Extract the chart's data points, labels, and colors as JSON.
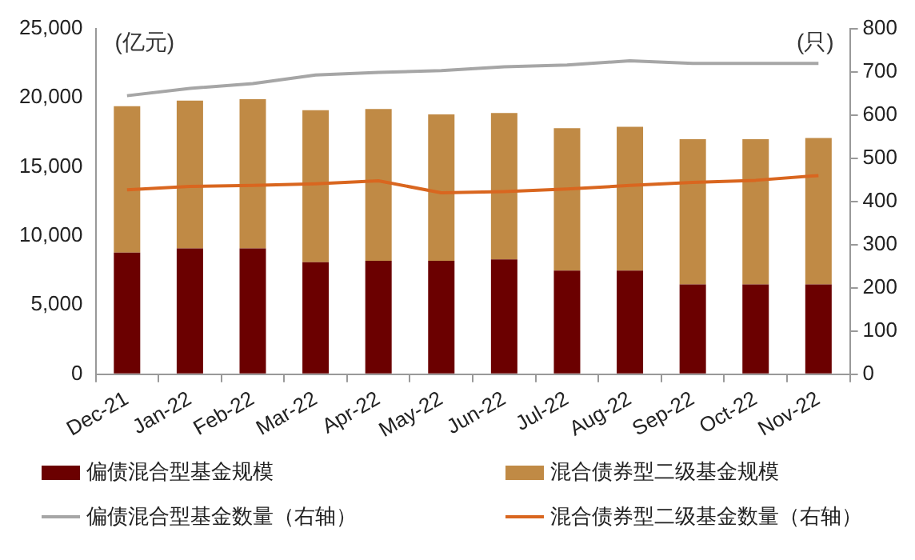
{
  "chart_data": {
    "type": "bar",
    "ylabel": "(亿元)",
    "y2label": "(只)",
    "categories": [
      "Dec-21",
      "Jan-22",
      "Feb-22",
      "Mar-22",
      "Apr-22",
      "May-22",
      "Jun-22",
      "Jul-22",
      "Aug-22",
      "Sep-22",
      "Oct-22",
      "Nov-22"
    ],
    "stacked": true,
    "series": [
      {
        "name": "偏债混合型基金规模",
        "color": "#6b0000",
        "values": [
          8800,
          9100,
          9100,
          8100,
          8200,
          8200,
          8300,
          7500,
          7500,
          6500,
          6500,
          6500
        ]
      },
      {
        "name": "混合债券型二级基金规模",
        "color": "#c08a45",
        "values": [
          10600,
          10700,
          10800,
          11000,
          11000,
          10600,
          10600,
          10300,
          10400,
          10500,
          10500,
          10600
        ]
      },
      {
        "name": "偏债混合型基金数量（右轴）",
        "type": "line",
        "axis": "y2",
        "color": "#a6a6a6",
        "values": [
          645,
          662,
          673,
          693,
          699,
          703,
          712,
          716,
          726,
          720,
          720,
          720
        ]
      },
      {
        "name": "混合债券型二级基金数量（右轴）",
        "type": "line",
        "axis": "y2",
        "color": "#d9661f",
        "values": [
          427,
          435,
          437,
          441,
          448,
          420,
          423,
          429,
          437,
          444,
          449,
          460
        ]
      }
    ],
    "ylim": [
      0,
      25000
    ],
    "yticks": [
      0,
      {
        "value": 5000,
        "label": "5,000"
      },
      {
        "value": 10000,
        "label": "10,000"
      },
      {
        "value": 15000,
        "label": "15,000"
      },
      {
        "value": 20000,
        "label": "20,000"
      },
      {
        "value": 25000,
        "label": "25,000"
      }
    ],
    "y2lim": [
      0,
      800
    ],
    "y2ticks": [
      0,
      100,
      200,
      300,
      400,
      500,
      600,
      700,
      800
    ],
    "grid": false,
    "legend": "bottom",
    "marker": "none",
    "line_style": "solid"
  }
}
